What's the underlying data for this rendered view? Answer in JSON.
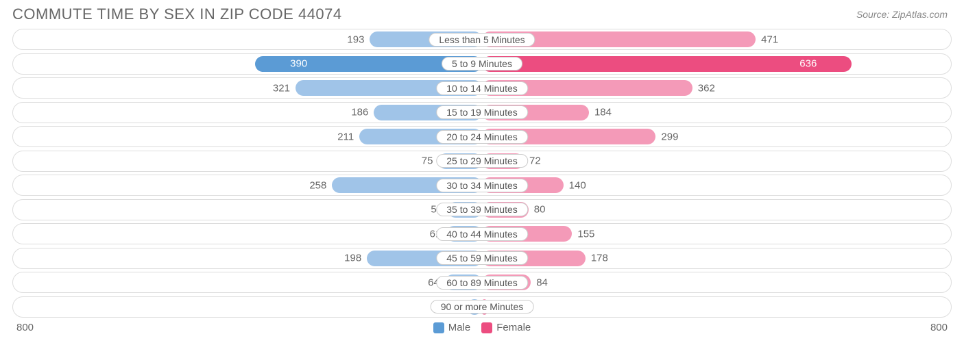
{
  "title": "COMMUTE TIME BY SEX IN ZIP CODE 44074",
  "source": "Source: ZipAtlas.com",
  "chart": {
    "type": "diverging-bar",
    "axis_max": 800,
    "axis_left_label": "800",
    "axis_right_label": "800",
    "background_color": "#ffffff",
    "row_border_color": "#dddddd",
    "text_color": "#666666",
    "pill_border_color": "#cccccc",
    "series": [
      {
        "key": "male",
        "label": "Male",
        "color_full": "#5b9bd5",
        "color_light": "#a0c4e8"
      },
      {
        "key": "female",
        "label": "Female",
        "color_full": "#ec4d80",
        "color_light": "#f49ab8"
      }
    ],
    "max_male": 390,
    "max_female": 636,
    "rows": [
      {
        "category": "Less than 5 Minutes",
        "male": 193,
        "female": 471
      },
      {
        "category": "5 to 9 Minutes",
        "male": 390,
        "female": 636
      },
      {
        "category": "10 to 14 Minutes",
        "male": 321,
        "female": 362
      },
      {
        "category": "15 to 19 Minutes",
        "male": 186,
        "female": 184
      },
      {
        "category": "20 to 24 Minutes",
        "male": 211,
        "female": 299
      },
      {
        "category": "25 to 29 Minutes",
        "male": 75,
        "female": 72
      },
      {
        "category": "30 to 34 Minutes",
        "male": 258,
        "female": 140
      },
      {
        "category": "35 to 39 Minutes",
        "male": 59,
        "female": 80
      },
      {
        "category": "40 to 44 Minutes",
        "male": 61,
        "female": 155
      },
      {
        "category": "45 to 59 Minutes",
        "male": 198,
        "female": 178
      },
      {
        "category": "60 to 89 Minutes",
        "male": 64,
        "female": 84
      },
      {
        "category": "90 or more Minutes",
        "male": 26,
        "female": 8
      }
    ]
  }
}
